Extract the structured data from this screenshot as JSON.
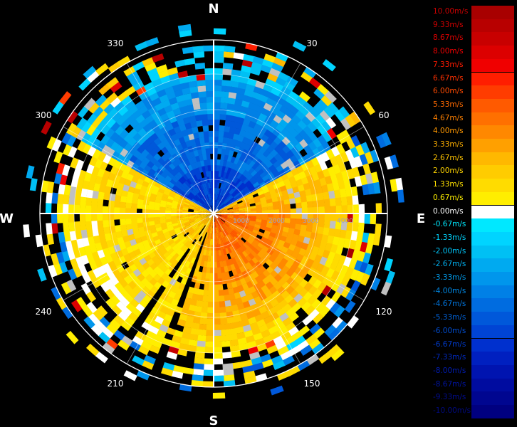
{
  "compass": {
    "north": "N",
    "east": "E",
    "south": "S",
    "west": "W"
  },
  "bearings": [
    {
      "deg": 30,
      "label": "30"
    },
    {
      "deg": 60,
      "label": "60"
    },
    {
      "deg": 120,
      "label": "120"
    },
    {
      "deg": 150,
      "label": "150"
    },
    {
      "deg": 210,
      "label": "210"
    },
    {
      "deg": 240,
      "label": "240"
    },
    {
      "deg": 300,
      "label": "300"
    },
    {
      "deg": 330,
      "label": "330"
    }
  ],
  "range_labels": [
    "1000",
    "2000",
    "3000",
    "4000"
  ],
  "velocity_scale": [
    {
      "label": "10.00m/s",
      "color": "#a80000",
      "text": "#c80000"
    },
    {
      "label": "9.33m/s",
      "color": "#b80000",
      "text": "#d00000"
    },
    {
      "label": "8.67m/s",
      "color": "#c80000",
      "text": "#e00000"
    },
    {
      "label": "8.00m/s",
      "color": "#dc0000",
      "text": "#f00000"
    },
    {
      "label": "7.33m/s",
      "color": "#f00000",
      "text": "#ff1a00"
    },
    {
      "label": "6.67m/s",
      "color": "#ff1e00",
      "text": "#ff3000"
    },
    {
      "label": "6.00m/s",
      "color": "#ff3c00",
      "text": "#ff4a00"
    },
    {
      "label": "5.33m/s",
      "color": "#ff5a00",
      "text": "#ff6a00"
    },
    {
      "label": "4.67m/s",
      "color": "#ff7000",
      "text": "#ff8000"
    },
    {
      "label": "4.00m/s",
      "color": "#ff8800",
      "text": "#ff9800"
    },
    {
      "label": "3.33m/s",
      "color": "#ffa000",
      "text": "#ffb000"
    },
    {
      "label": "2.67m/s",
      "color": "#ffb800",
      "text": "#ffc400"
    },
    {
      "label": "2.00m/s",
      "color": "#ffcc00",
      "text": "#ffd400"
    },
    {
      "label": "1.33m/s",
      "color": "#ffdc00",
      "text": "#ffe000"
    },
    {
      "label": "0.67m/s",
      "color": "#ffee00",
      "text": "#fff000"
    },
    {
      "label": "0.00m/s",
      "color": "#ffffff",
      "text": "#ffffff"
    },
    {
      "label": "-0.67m/s",
      "color": "#00e8ff",
      "text": "#00e8ff"
    },
    {
      "label": "-1.33m/s",
      "color": "#00d4ff",
      "text": "#00d4ff"
    },
    {
      "label": "-2.00m/s",
      "color": "#00c0f4",
      "text": "#00c4f8"
    },
    {
      "label": "-2.67m/s",
      "color": "#00aaf0",
      "text": "#00b0f0"
    },
    {
      "label": "-3.33m/s",
      "color": "#0096ec",
      "text": "#009cec"
    },
    {
      "label": "-4.00m/s",
      "color": "#0080e6",
      "text": "#0088e4"
    },
    {
      "label": "-4.67m/s",
      "color": "#006ce0",
      "text": "#0074dc"
    },
    {
      "label": "-5.33m/s",
      "color": "#0058da",
      "text": "#0060d4"
    },
    {
      "label": "-6.00m/s",
      "color": "#0044d4",
      "text": "#004cce"
    },
    {
      "label": "-6.67m/s",
      "color": "#0030ce",
      "text": "#003ac8"
    },
    {
      "label": "-7.33m/s",
      "color": "#0020c0",
      "text": "#002ac0"
    },
    {
      "label": "-8.00m/s",
      "color": "#0014b0",
      "text": "#001cb0"
    },
    {
      "label": "-8.67m/s",
      "color": "#000ca0",
      "text": "#0014a0"
    },
    {
      "label": "-9.33m/s",
      "color": "#000690",
      "text": "#000c90"
    },
    {
      "label": "-10.00m/s",
      "color": "#000080",
      "text": "#000a80"
    }
  ]
}
